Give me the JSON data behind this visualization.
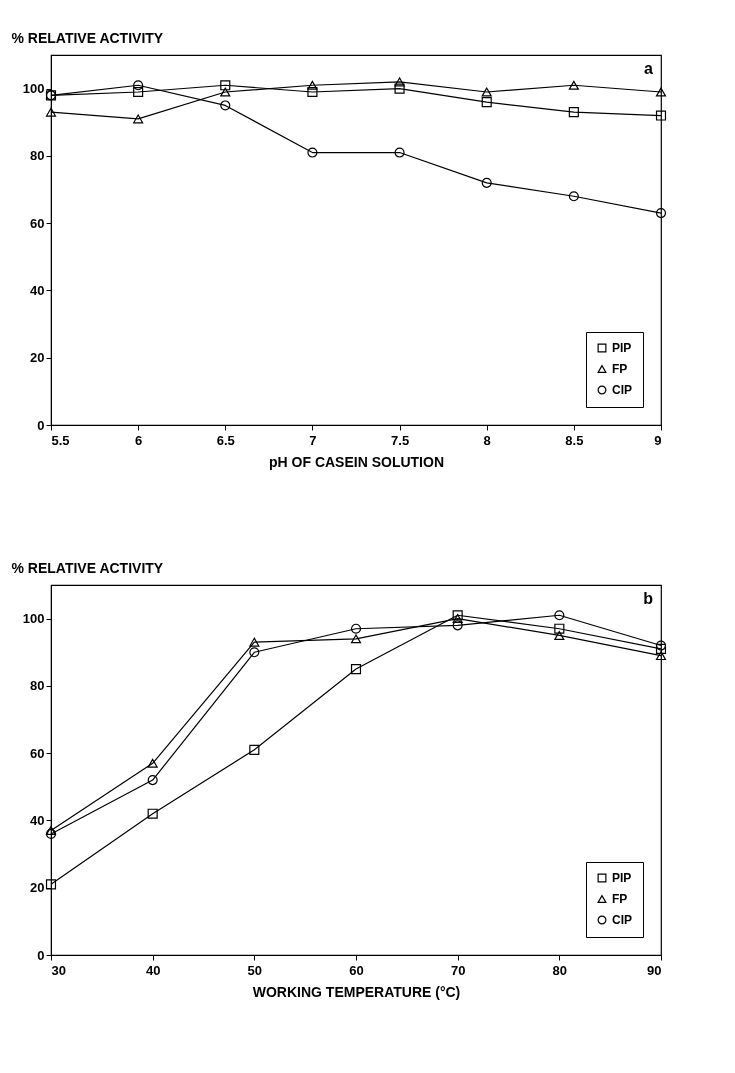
{
  "chart_data": [
    {
      "type": "line",
      "ylabel": "% RELATIVE ACTIVITY",
      "xlabel": "pH OF CASEIN SOLUTION",
      "annotations": [
        "a"
      ],
      "x": [
        5.5,
        6,
        6.5,
        7,
        7.5,
        8,
        8.5,
        9
      ],
      "xlim": [
        5.5,
        9
      ],
      "xticks": [
        5.5,
        6,
        6.5,
        7,
        7.5,
        8,
        8.5,
        9
      ],
      "ylim": [
        0,
        110
      ],
      "yticks": [
        0,
        20,
        40,
        60,
        80,
        100
      ],
      "grid": false,
      "legend": "bottom right",
      "series": [
        {
          "name": "PIP",
          "color": "#000000",
          "marker": "square",
          "values": [
            98,
            99,
            101,
            99,
            100,
            96,
            93,
            92
          ]
        },
        {
          "name": "FP",
          "color": "#000000",
          "marker": "triangle",
          "values": [
            93,
            91,
            99,
            101,
            102,
            99,
            101,
            99
          ]
        },
        {
          "name": "CIP",
          "color": "#000000",
          "marker": "circle",
          "values": [
            98,
            101,
            95,
            81,
            81,
            72,
            68,
            63
          ]
        }
      ]
    },
    {
      "type": "line",
      "ylabel": "% RELATIVE ACTIVITY",
      "xlabel": "WORKING TEMPERATURE (°C)",
      "annotations": [
        "b"
      ],
      "x": [
        30,
        40,
        50,
        60,
        70,
        80,
        90
      ],
      "xlim": [
        30,
        90
      ],
      "xticks": [
        30,
        40,
        50,
        60,
        70,
        80,
        90
      ],
      "ylim": [
        0,
        110
      ],
      "yticks": [
        0,
        20,
        40,
        60,
        80,
        100
      ],
      "grid": false,
      "legend": "bottom right",
      "series": [
        {
          "name": "PIP",
          "color": "#000000",
          "marker": "square",
          "values": [
            21,
            42,
            61,
            85,
            101,
            97,
            91
          ]
        },
        {
          "name": "FP",
          "color": "#000000",
          "marker": "triangle",
          "values": [
            37,
            57,
            93,
            94,
            100,
            95,
            89
          ]
        },
        {
          "name": "CIP",
          "color": "#000000",
          "marker": "circle",
          "values": [
            36,
            52,
            90,
            97,
            98,
            101,
            92
          ]
        }
      ]
    }
  ]
}
